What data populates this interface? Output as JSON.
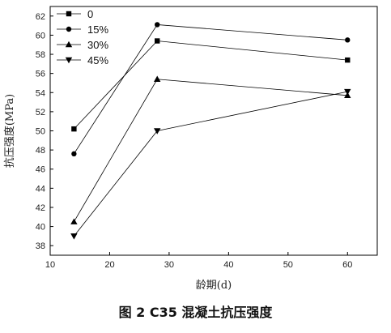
{
  "caption": "图 2   C35 混凝土抗压强度",
  "chart_data": {
    "type": "line",
    "xlabel": "龄期(d)",
    "ylabel": "抗压强度(MPa)",
    "xlim": [
      10,
      65
    ],
    "ylim": [
      37,
      63
    ],
    "xticks": [
      10,
      20,
      30,
      40,
      50,
      60
    ],
    "yticks": [
      38,
      40,
      42,
      44,
      46,
      48,
      50,
      52,
      54,
      56,
      58,
      60,
      62
    ],
    "legend_position": "top-left",
    "x": [
      14,
      28,
      60
    ],
    "series": [
      {
        "name": "0",
        "marker": "square",
        "values": [
          50.2,
          59.4,
          57.4
        ]
      },
      {
        "name": "15%",
        "marker": "circle",
        "values": [
          47.6,
          61.1,
          59.5
        ]
      },
      {
        "name": "30%",
        "marker": "triangle-up",
        "values": [
          40.5,
          55.4,
          53.7
        ]
      },
      {
        "name": "45%",
        "marker": "triangle-down",
        "values": [
          39.0,
          50.0,
          54.1
        ]
      }
    ]
  }
}
